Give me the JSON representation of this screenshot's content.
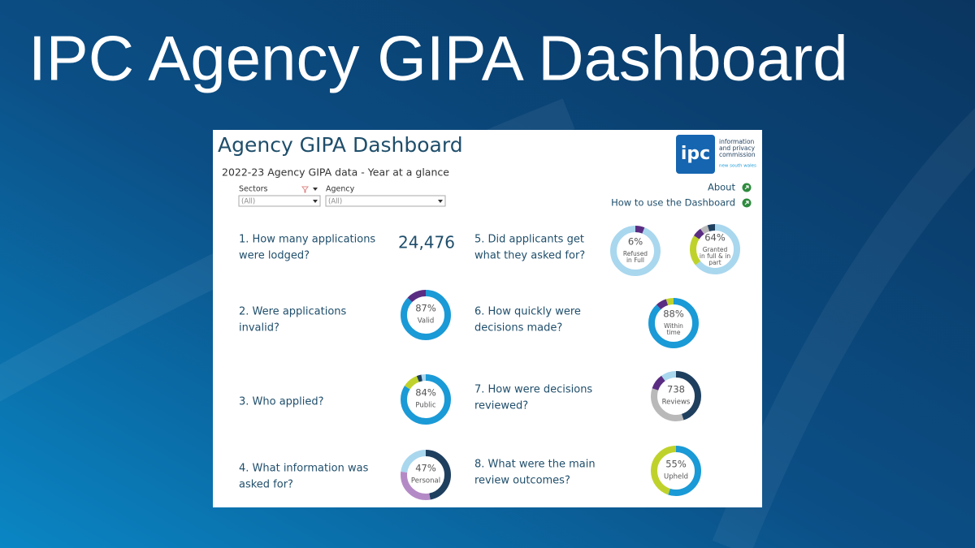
{
  "slide_title": "IPC Agency GIPA Dashboard",
  "dashboard": {
    "title": "Agency GIPA Dashboard",
    "subtitle": "2022-23 Agency GIPA data - Year at a glance",
    "filters": [
      {
        "label": "Sectors",
        "value": "(All)"
      },
      {
        "label": "Agency",
        "value": "(All)"
      }
    ],
    "logo": {
      "mark": "ipc",
      "name": [
        "information",
        "and privacy",
        "commission"
      ],
      "region": "new south wales"
    },
    "links": [
      "About",
      "How to use the Dashboard"
    ],
    "questions": [
      {
        "text": [
          "1. How many applications",
          "were lodged?"
        ],
        "figure": "24,476"
      },
      {
        "text": [
          "2. Were applications",
          "invalid?"
        ],
        "donuts": [
          {
            "label": "87%",
            "caption": [
              "Valid"
            ],
            "segments": [
              {
                "value": 87,
                "color": "#1a9ad6"
              },
              {
                "value": 13,
                "color": "#5a2d82"
              }
            ]
          }
        ]
      },
      {
        "text": [
          "3. Who applied?"
        ],
        "donuts": [
          {
            "label": "84%",
            "caption": [
              "Public"
            ],
            "segments": [
              {
                "value": 84,
                "color": "#1a9ad6"
              },
              {
                "value": 10,
                "color": "#bfd22b"
              },
              {
                "value": 3,
                "color": "#1f3f5f"
              },
              {
                "value": 3,
                "color": "#a9d7ee"
              }
            ]
          }
        ]
      },
      {
        "text": [
          "4. What information was",
          "asked for?"
        ],
        "donuts": [
          {
            "label": "47%",
            "caption": [
              "Personal"
            ],
            "segments": [
              {
                "value": 47,
                "color": "#1f3f5f"
              },
              {
                "value": 30,
                "color": "#b48ac6"
              },
              {
                "value": 23,
                "color": "#a9d7ee"
              }
            ]
          }
        ]
      },
      {
        "text": [
          "5. Did applicants get",
          "what they asked for?"
        ],
        "donuts": [
          {
            "label": "6%",
            "caption": [
              "Refused",
              "in Full"
            ],
            "segments": [
              {
                "value": 6,
                "color": "#5a2d82"
              },
              {
                "value": 94,
                "color": "#a9d7ee"
              }
            ]
          },
          {
            "label": "64%",
            "caption": [
              "Granted",
              "in full & in",
              "part"
            ],
            "segments": [
              {
                "value": 64,
                "color": "#a9d7ee"
              },
              {
                "value": 20,
                "color": "#bfd22b"
              },
              {
                "value": 6,
                "color": "#5a2d82"
              },
              {
                "value": 5,
                "color": "#b9b9b9"
              },
              {
                "value": 5,
                "color": "#1f3f5f"
              }
            ]
          }
        ]
      },
      {
        "text": [
          "6. How quickly were",
          "decisions made?"
        ],
        "donuts": [
          {
            "label": "88%",
            "caption": [
              "Within",
              "time"
            ],
            "segments": [
              {
                "value": 88,
                "color": "#1a9ad6"
              },
              {
                "value": 7,
                "color": "#5a2d82"
              },
              {
                "value": 5,
                "color": "#bfd22b"
              }
            ]
          }
        ]
      },
      {
        "text": [
          "7. How were decisions",
          "reviewed?"
        ],
        "donuts": [
          {
            "label": "738",
            "caption": [
              "Reviews"
            ],
            "segments": [
              {
                "value": 45,
                "color": "#1f3f5f"
              },
              {
                "value": 35,
                "color": "#b9b9b9"
              },
              {
                "value": 10,
                "color": "#5a2d82"
              },
              {
                "value": 10,
                "color": "#a9d7ee"
              }
            ]
          }
        ]
      },
      {
        "text": [
          "8. What were the main",
          "review outcomes?"
        ],
        "donuts": [
          {
            "label": "55%",
            "caption": [
              "Upheld"
            ],
            "segments": [
              {
                "value": 55,
                "color": "#1a9ad6"
              },
              {
                "value": 45,
                "color": "#bfd22b"
              }
            ]
          }
        ]
      }
    ]
  }
}
